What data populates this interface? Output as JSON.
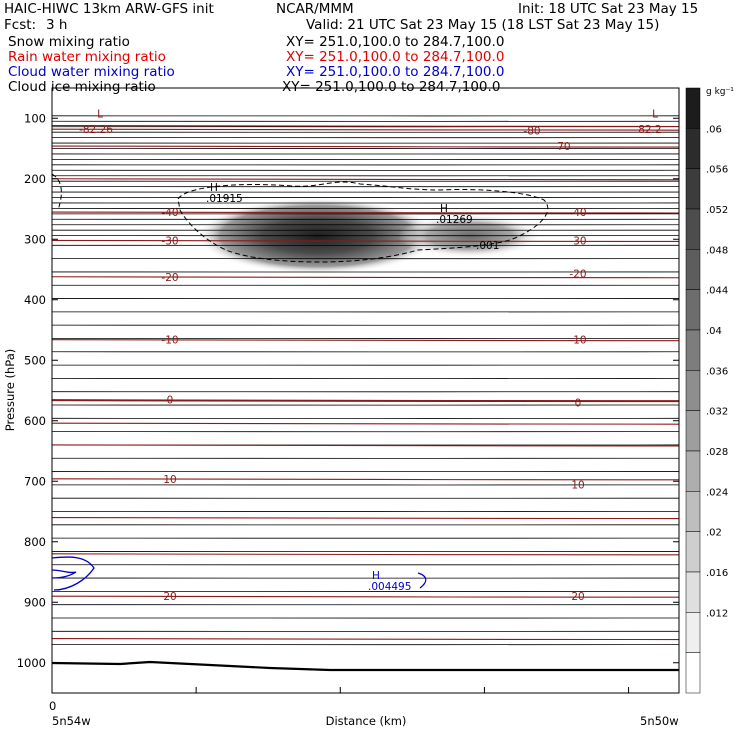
{
  "header": {
    "model": "HAIC-HIWC 13km ARW-GFS init",
    "org": "NCAR/MMM",
    "init": "Init: 18 UTC Sat 23 May 15",
    "fcst_label": "Fcst:",
    "fcst_value": "3 h",
    "valid": "Valid: 21 UTC Sat 23 May 15 (18 LST Sat 23 May 15)"
  },
  "fields": [
    {
      "name": "Snow mixing ratio",
      "xy": "XY= 251.0,100.0 to 284.7,100.0",
      "color": "#000000"
    },
    {
      "name": "Rain water mixing ratio",
      "xy": "XY= 251.0,100.0 to 284.7,100.0",
      "color": "#e00000"
    },
    {
      "name": "Cloud water mixing ratio",
      "xy": "XY= 251.0,100.0 to 284.7,100.0",
      "color": "#0000cc"
    },
    {
      "name": "Cloud ice mixing ratio",
      "xy": "XY= 251.0,100.0 to 284.7,100.0",
      "color": "#000000"
    }
  ],
  "chart_data": {
    "type": "heatmap",
    "xlabel": "Distance (km)",
    "ylabel": "Pressure (hPa)",
    "x_tick_labels": {
      "left": "5n54w",
      "right": "5n50w",
      "origin": "0"
    },
    "y_ticks": [
      100,
      200,
      300,
      400,
      500,
      600,
      700,
      800,
      900,
      1000
    ],
    "ylim": [
      1050,
      50
    ],
    "colorbar": {
      "unit": "g kg⁻¹",
      "ticks": [
        ".06",
        ".056",
        ".052",
        ".048",
        ".044",
        ".04",
        ".036",
        ".032",
        ".028",
        ".024",
        ".02",
        ".016",
        ".012"
      ],
      "bins": 15
    },
    "temperature_contours": {
      "color": "#8b1a1a",
      "labels": [
        {
          "text": "-82.26",
          "p": 118,
          "side": "left"
        },
        {
          "text": "-82.2",
          "p": 118,
          "side": "right"
        },
        {
          "text": "-80",
          "p": 120,
          "side": "right"
        },
        {
          "text": "-70",
          "p": 146,
          "side": "right"
        },
        {
          "text": "-40",
          "p": 255,
          "side": "left"
        },
        {
          "text": "-40",
          "p": 255,
          "side": "right"
        },
        {
          "text": "-30",
          "p": 302,
          "side": "left"
        },
        {
          "text": "-30",
          "p": 302,
          "side": "right"
        },
        {
          "text": "-20",
          "p": 362,
          "side": "left"
        },
        {
          "text": "-20",
          "p": 357,
          "side": "right"
        },
        {
          "text": "-10",
          "p": 466,
          "side": "left"
        },
        {
          "text": "-10",
          "p": 466,
          "side": "right"
        },
        {
          "text": "0",
          "p": 565,
          "side": "left"
        },
        {
          "text": "0",
          "p": 570,
          "side": "right"
        },
        {
          "text": "10",
          "p": 696,
          "side": "left"
        },
        {
          "text": "10",
          "p": 705,
          "side": "right"
        },
        {
          "text": "20",
          "p": 890,
          "side": "left"
        },
        {
          "text": "20",
          "p": 890,
          "side": "right"
        }
      ],
      "extremes": [
        {
          "text": "L",
          "p": 92,
          "side": "left"
        },
        {
          "text": "L",
          "p": 92,
          "side": "right"
        }
      ]
    },
    "annotations": [
      {
        "text": "H",
        "value": ".01915",
        "color": "#000000"
      },
      {
        "text": "H",
        "value": ".01269",
        "color": "#000000"
      },
      {
        "text": ".001",
        "value": "",
        "color": "#000000"
      },
      {
        "text": "H",
        "value": ".004495",
        "color": "#0000cc"
      }
    ]
  }
}
